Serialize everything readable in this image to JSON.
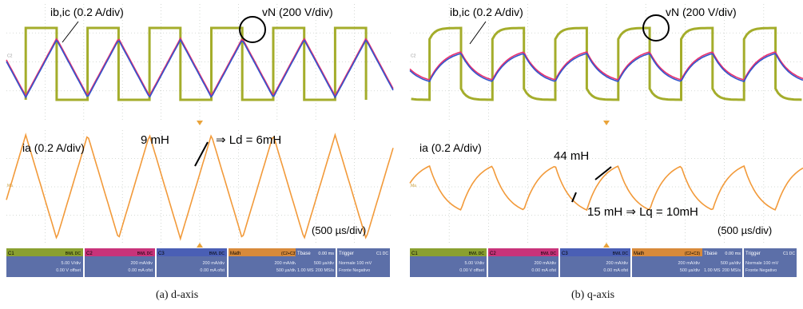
{
  "colors": {
    "yellow_green": "#a4ad2b",
    "pink": "#e8306f",
    "blue": "#3355cc",
    "orange": "#f29a3a",
    "grid": "#c9cfc9",
    "marker": "#e9a33a"
  },
  "chart_data": [
    {
      "type": "line",
      "caption": "(a) d-axis",
      "top_panel": {
        "label_current": "ib,ic (0.2 A/div)",
        "label_voltage": "vN (200 V/div)",
        "series": [
          {
            "name": "ib",
            "color": "#e8306f",
            "waveform": "triangle",
            "period_divs": 1.6
          },
          {
            "name": "ic",
            "color": "#3355cc",
            "waveform": "triangle",
            "period_divs": 1.6
          },
          {
            "name": "vN",
            "color": "#a4ad2b",
            "waveform": "square",
            "period_divs": 1.6
          }
        ]
      },
      "bottom_panel": {
        "label_current": "ia (0.2 A/div)",
        "annotations": [
          "9 mH",
          "⇒ Ld = 6mH"
        ],
        "timebase": "(500 µs/div)",
        "series": [
          {
            "name": "ia",
            "color": "#f29a3a",
            "waveform": "triangle",
            "period_divs": 1.6
          }
        ]
      },
      "status_bar": {
        "ch1": {
          "name": "C1",
          "tag": "BWL DC",
          "line1": "5.00 V/div",
          "line2": "0.00 V offset"
        },
        "ch2": {
          "name": "C2",
          "tag": "BWL DC",
          "line1": "200 mA/div",
          "line2": "0.00 mA ofst"
        },
        "ch3": {
          "name": "C3",
          "tag": "BWL DC",
          "line1": "200 mA/div",
          "line2": "0.00 mA ofst"
        },
        "math": {
          "name": "Math",
          "formula": "(C2+C3)",
          "line1": "200 mA/div",
          "line2": "500 µs/div"
        },
        "tbase": {
          "name": "Tbase",
          "value": "0.00 ms",
          "line1": "500 µs/div",
          "line2": "200 MS/s",
          "extra": "1.00 MS"
        },
        "trigger": {
          "name": "Trigger",
          "tag": "C1 DC",
          "line1": "Normale  100 mV",
          "line2": "Fronte  Negativo"
        }
      }
    },
    {
      "type": "line",
      "caption": "(b) q-axis",
      "top_panel": {
        "label_current": "ib,ic (0.2 A/div)",
        "label_voltage": "vN (200 V/div)",
        "series": [
          {
            "name": "ib",
            "color": "#e8306f",
            "waveform": "exponential-sawtooth",
            "period_divs": 1.6
          },
          {
            "name": "ic",
            "color": "#3355cc",
            "waveform": "exponential-sawtooth",
            "period_divs": 1.6
          },
          {
            "name": "vN",
            "color": "#a4ad2b",
            "waveform": "square-decay",
            "period_divs": 1.6
          }
        ]
      },
      "bottom_panel": {
        "label_current": "ia (0.2 A/div)",
        "annotations": [
          "44 mH",
          "15 mH ⇒ Lq = 10mH"
        ],
        "timebase": "(500 µs/div)",
        "series": [
          {
            "name": "ia",
            "color": "#f29a3a",
            "waveform": "exponential-sawtooth",
            "period_divs": 1.6
          }
        ]
      },
      "status_bar": {
        "ch1": {
          "name": "C1",
          "tag": "BWL DC",
          "line1": "5.00 V/div",
          "line2": "0.00 V offset"
        },
        "ch2": {
          "name": "C2",
          "tag": "BWL DC",
          "line1": "200 mA/div",
          "line2": "0.00 mA ofst"
        },
        "ch3": {
          "name": "C3",
          "tag": "BWL DC",
          "line1": "200 mA/div",
          "line2": "0.00 mA ofst"
        },
        "math": {
          "name": "Math",
          "formula": "(C2+C3)",
          "line1": "200 mA/div",
          "line2": "500 µs/div"
        },
        "tbase": {
          "name": "Tbase",
          "value": "0.00 ms",
          "line1": "500 µs/div",
          "line2": "200 MS/s",
          "extra": "1.00 MS"
        },
        "trigger": {
          "name": "Trigger",
          "tag": "C1 DC",
          "line1": "Normale  100 mV",
          "line2": "Fronte  Negativo"
        }
      }
    }
  ]
}
